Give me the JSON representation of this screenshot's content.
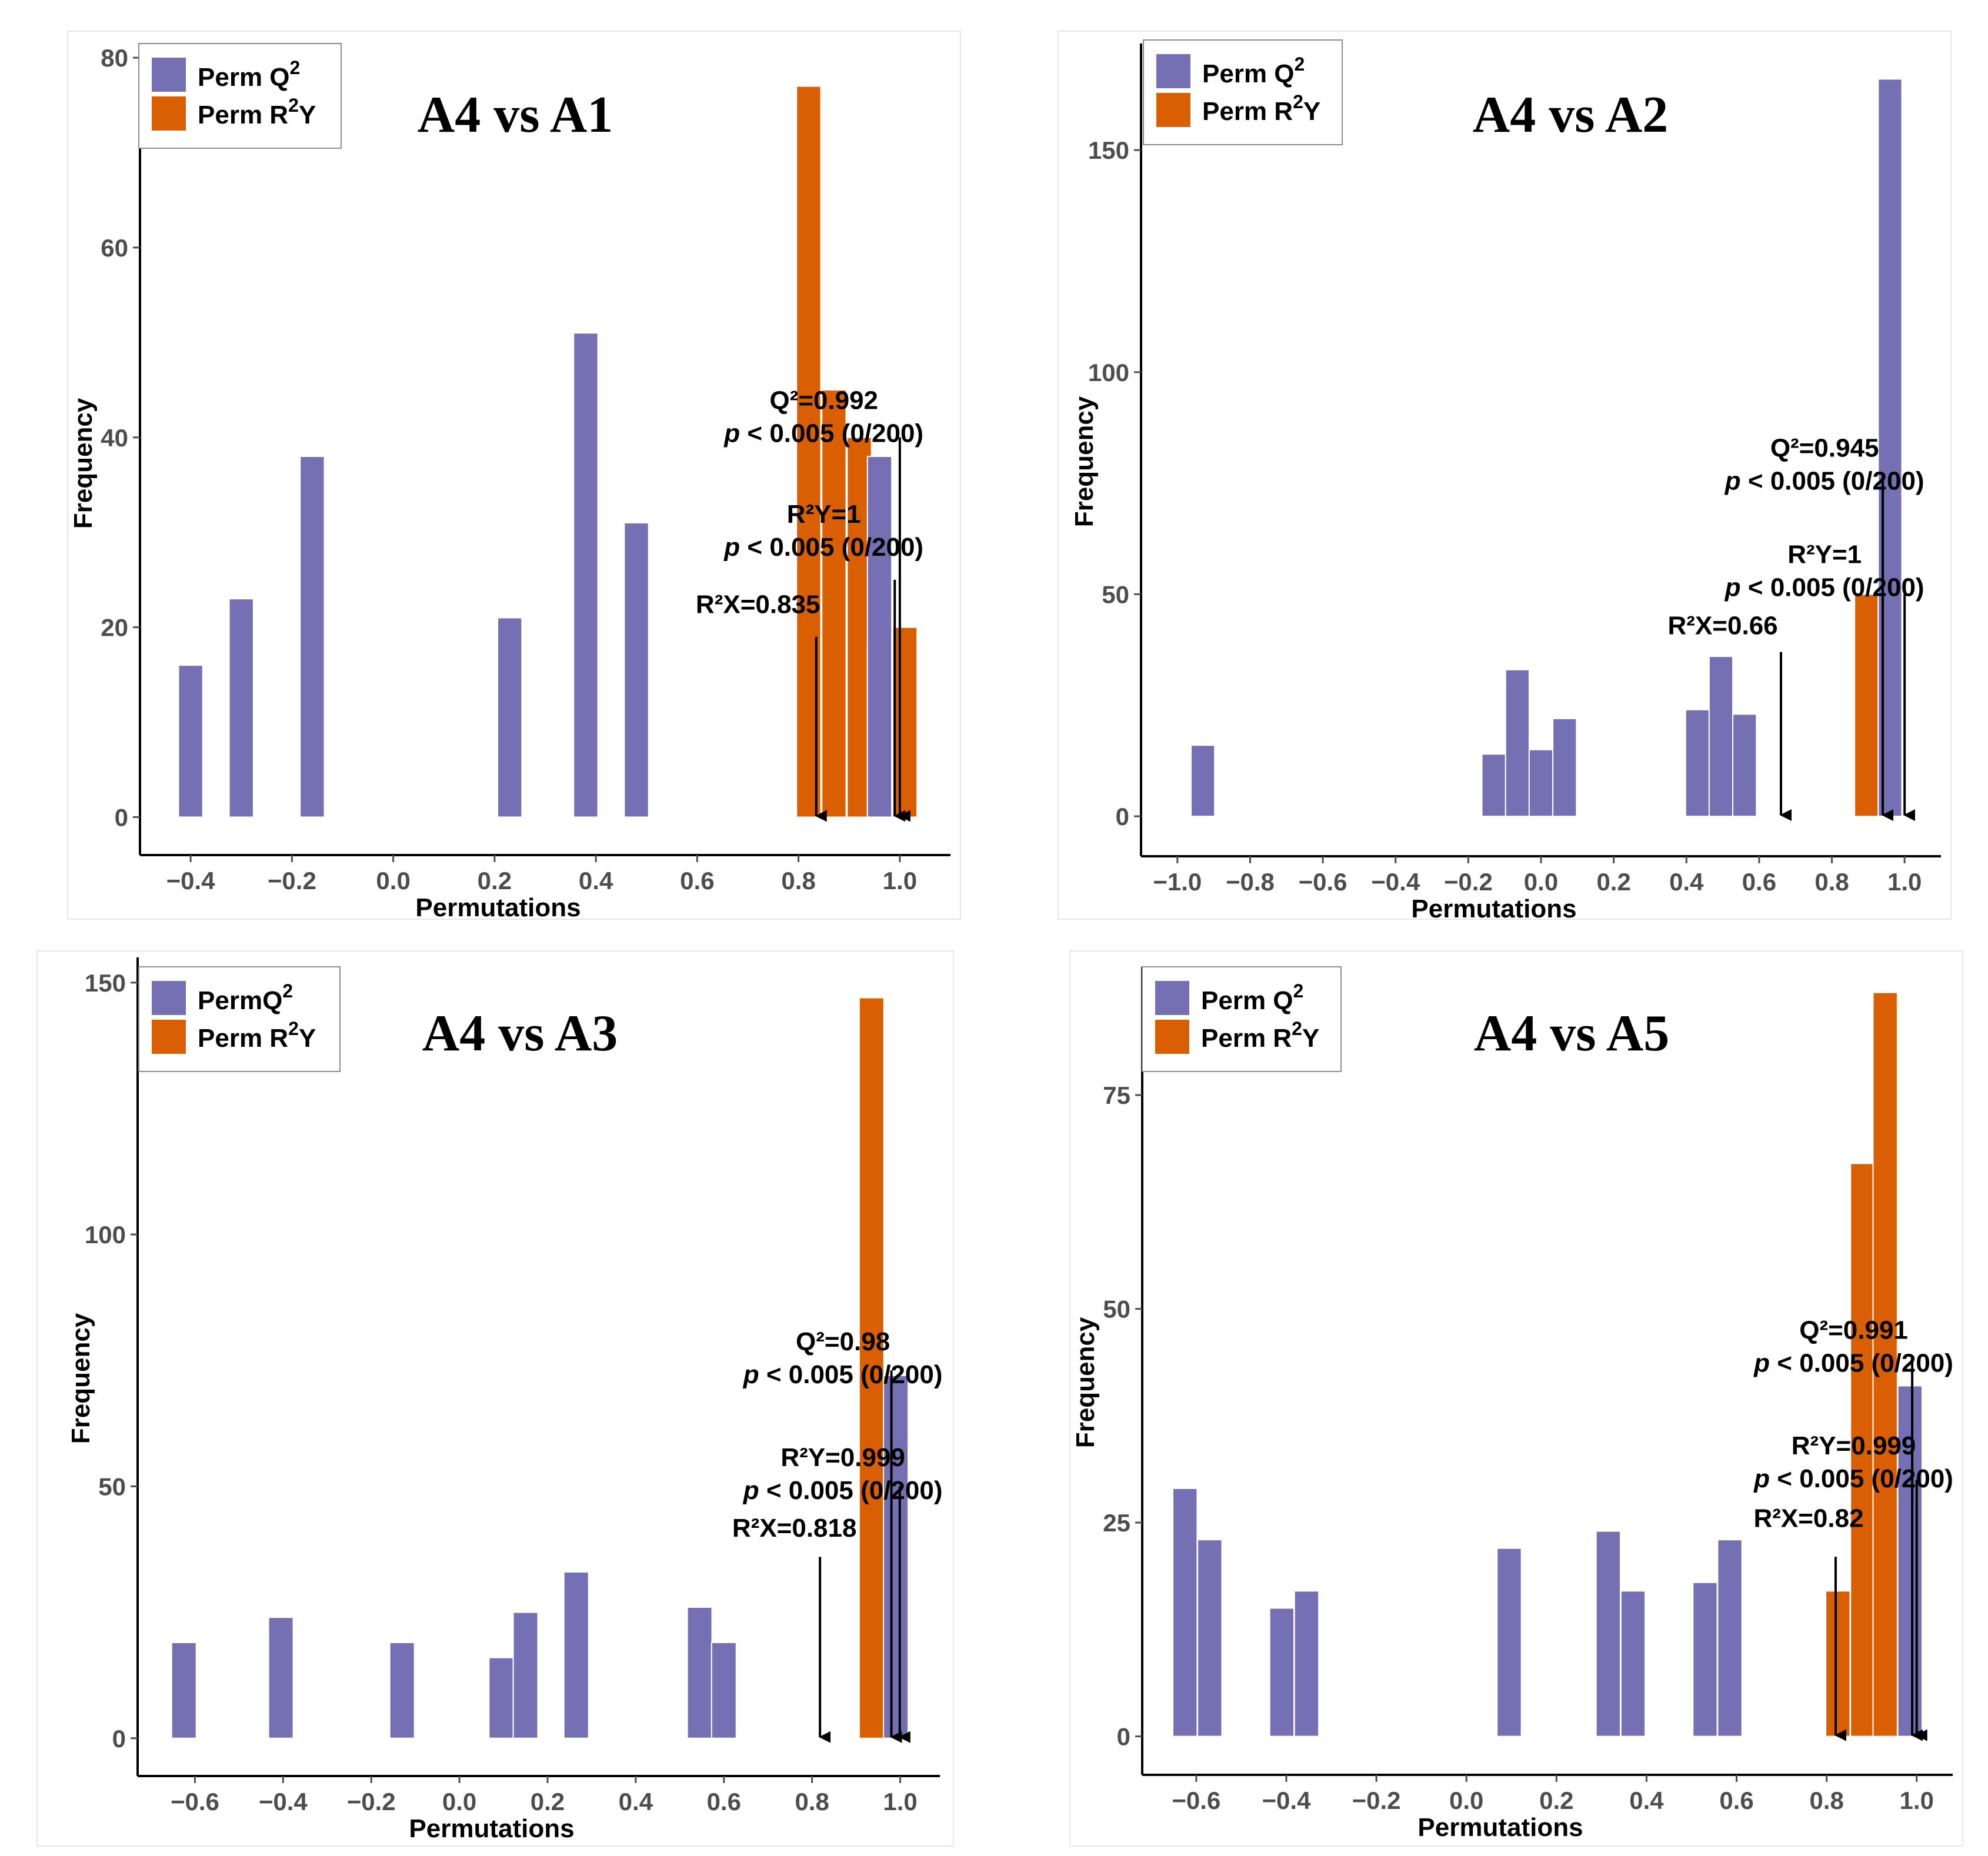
{
  "colors": {
    "q2": "#7570b3",
    "r2y": "#d95f02"
  },
  "legend": {
    "q2_prefix": "Perm Q",
    "q2_prefix_compact": "PermQ",
    "r2y_prefix": "Perm R",
    "r2y_suffix": "Y",
    "sup": "2"
  },
  "chart_data": [
    {
      "type": "histogram",
      "title": "A4 vs A1",
      "xlabel": "Permutations",
      "ylabel": "Frequency",
      "xlim": [
        -0.5,
        1.1
      ],
      "ylim": [
        -4,
        81
      ],
      "xticks": [
        -0.4,
        -0.2,
        0.0,
        0.2,
        0.4,
        0.6,
        0.8,
        1.0
      ],
      "xtick_labels": [
        "−0.4",
        "−0.2",
        "0.0",
        "0.2",
        "0.4",
        "0.6",
        "0.8",
        "1.0"
      ],
      "yticks": [
        0,
        20,
        40,
        60,
        80
      ],
      "ytick_labels": [
        "0",
        "20",
        "40",
        "60",
        "80"
      ],
      "bin_width": 0.048,
      "series": [
        {
          "name": "Perm Q2",
          "color_key": "q2",
          "bins": [
            [
              -0.4,
              16
            ],
            [
              -0.3,
              23
            ],
            [
              -0.16,
              38
            ],
            [
              0.23,
              21
            ],
            [
              0.38,
              51
            ],
            [
              0.48,
              31
            ],
            [
              0.96,
              38
            ]
          ]
        },
        {
          "name": "Perm R2Y",
          "color_key": "r2y",
          "bins": [
            [
              0.82,
              77
            ],
            [
              0.87,
              45
            ],
            [
              0.92,
              40
            ],
            [
              0.96,
              18
            ],
            [
              1.01,
              20
            ]
          ]
        }
      ],
      "annotations": [
        {
          "lines": [
            "Q²=0.992",
            "p < 0.005 (0/200)"
          ],
          "arrow_x": 1.0,
          "arrow_from_y": 40,
          "text_x": 0.85,
          "text_y": 43
        },
        {
          "lines": [
            "R²Y=1",
            "p < 0.005 (0/200)"
          ],
          "arrow_x": 0.99,
          "arrow_from_y": 25,
          "text_x": 0.85,
          "text_y": 31
        },
        {
          "lines": [
            "R²X=0.835"
          ],
          "arrow_x": 0.835,
          "arrow_from_y": 19,
          "text_x": 0.72,
          "text_y": 21.5
        }
      ]
    },
    {
      "type": "histogram",
      "title": "A4 vs A2",
      "xlabel": "Permutations",
      "ylabel": "Frequency",
      "xlim": [
        -1.1,
        1.1
      ],
      "ylim": [
        -9,
        174
      ],
      "xticks": [
        -1.0,
        -0.8,
        -0.6,
        -0.4,
        -0.2,
        0.0,
        0.2,
        0.4,
        0.6,
        0.8,
        1.0
      ],
      "xtick_labels": [
        "−1.0",
        "−0.8",
        "−0.6",
        "−0.4",
        "−0.2",
        "0.0",
        "0.2",
        "0.4",
        "0.6",
        "0.8",
        "1.0"
      ],
      "yticks": [
        0,
        50,
        100,
        150
      ],
      "ytick_labels": [
        "0",
        "50",
        "100",
        "150"
      ],
      "bin_width": 0.065,
      "series": [
        {
          "name": "Perm Q2",
          "color_key": "q2",
          "bins": [
            [
              -0.93,
              16
            ],
            [
              -0.13,
              14
            ],
            [
              -0.065,
              33
            ],
            [
              0.0,
              15
            ],
            [
              0.065,
              22
            ],
            [
              0.43,
              24
            ],
            [
              0.495,
              36
            ],
            [
              0.56,
              23
            ],
            [
              0.96,
              166
            ]
          ]
        },
        {
          "name": "Perm R2Y",
          "color_key": "r2y",
          "bins": [
            [
              0.895,
              50
            ],
            [
              0.96,
              149
            ]
          ]
        }
      ],
      "annotations": [
        {
          "lines": [
            "Q²=0.945",
            "p < 0.005 (0/200)"
          ],
          "arrow_x": 0.94,
          "arrow_from_y": 76,
          "text_x": 0.78,
          "text_y": 81
        },
        {
          "lines": [
            "R²Y=1",
            "p < 0.005 (0/200)"
          ],
          "arrow_x": 1.0,
          "arrow_from_y": 50,
          "text_x": 0.78,
          "text_y": 57
        },
        {
          "lines": [
            "R²X=0.66"
          ],
          "arrow_x": 0.66,
          "arrow_from_y": 37,
          "text_x": 0.5,
          "text_y": 41
        }
      ]
    },
    {
      "type": "histogram",
      "title": "A4 vs A3",
      "xlabel": "Permutations",
      "ylabel": "Frequency",
      "xlim": [
        -0.73,
        1.09
      ],
      "ylim": [
        -7.5,
        155
      ],
      "xticks": [
        -0.6,
        -0.4,
        -0.2,
        0.0,
        0.2,
        0.4,
        0.6,
        0.8,
        1.0
      ],
      "xtick_labels": [
        "−0.6",
        "−0.4",
        "−0.2",
        "0.0",
        "0.2",
        "0.4",
        "0.6",
        "0.8",
        "1.0"
      ],
      "yticks": [
        0,
        50,
        100,
        150
      ],
      "ytick_labels": [
        "0",
        "50",
        "100",
        "150"
      ],
      "bin_width": 0.056,
      "series": [
        {
          "name": "Perm Q2",
          "color_key": "q2",
          "bins": [
            [
              -0.625,
              19
            ],
            [
              -0.405,
              24
            ],
            [
              -0.13,
              19
            ],
            [
              0.095,
              16
            ],
            [
              0.15,
              25
            ],
            [
              0.265,
              33
            ],
            [
              0.545,
              26
            ],
            [
              0.6,
              19
            ],
            [
              0.99,
              72
            ]
          ]
        },
        {
          "name": "Perm R2Y",
          "color_key": "r2y",
          "bins": [
            [
              0.935,
              147
            ],
            [
              0.99,
              50
            ]
          ]
        }
      ],
      "annotations": [
        {
          "lines": [
            "Q²=0.98",
            "p < 0.005 (0/200)"
          ],
          "arrow_x": 0.98,
          "arrow_from_y": 73,
          "text_x": 0.87,
          "text_y": 77
        },
        {
          "lines": [
            "R²Y=0.999",
            "p < 0.005 (0/200)"
          ],
          "arrow_x": 0.999,
          "arrow_from_y": 50,
          "text_x": 0.87,
          "text_y": 54
        },
        {
          "lines": [
            "R²X=0.818"
          ],
          "arrow_x": 0.818,
          "arrow_from_y": 36,
          "text_x": 0.76,
          "text_y": 40
        }
      ]
    },
    {
      "type": "histogram",
      "title": "A4 vs A5",
      "xlabel": "Permutations",
      "ylabel": "Frequency",
      "xlim": [
        -0.72,
        1.08
      ],
      "ylim": [
        -4.5,
        90
      ],
      "xticks": [
        -0.6,
        -0.4,
        -0.2,
        0.0,
        0.2,
        0.4,
        0.6,
        0.8,
        1.0
      ],
      "xtick_labels": [
        "−0.6",
        "−0.4",
        "−0.2",
        "0.0",
        "0.2",
        "0.4",
        "0.6",
        "0.8",
        "1.0"
      ],
      "yticks": [
        0,
        25,
        50,
        75
      ],
      "ytick_labels": [
        "0",
        "25",
        "50",
        "75"
      ],
      "bin_width": 0.054,
      "series": [
        {
          "name": "Perm Q2",
          "color_key": "q2",
          "bins": [
            [
              -0.625,
              29
            ],
            [
              -0.57,
              23
            ],
            [
              -0.41,
              15
            ],
            [
              -0.355,
              17
            ],
            [
              0.095,
              22
            ],
            [
              0.315,
              24
            ],
            [
              0.37,
              17
            ],
            [
              0.53,
              18
            ],
            [
              0.585,
              23
            ],
            [
              0.985,
              41
            ]
          ]
        },
        {
          "name": "Perm R2Y",
          "color_key": "r2y",
          "bins": [
            [
              0.825,
              17
            ],
            [
              0.88,
              67
            ],
            [
              0.93,
              87
            ],
            [
              0.985,
              29
            ]
          ]
        }
      ],
      "annotations": [
        {
          "lines": [
            "Q²=0.991",
            "p < 0.005 (0/200)"
          ],
          "arrow_x": 0.99,
          "arrow_from_y": 44,
          "text_x": 0.86,
          "text_y": 46.5
        },
        {
          "lines": [
            "R²Y=0.999",
            "p < 0.005 (0/200)"
          ],
          "arrow_x": 1.0,
          "arrow_from_y": 30,
          "text_x": 0.86,
          "text_y": 33
        },
        {
          "lines": [
            "R²X=0.82"
          ],
          "arrow_x": 0.82,
          "arrow_from_y": 21,
          "text_x": 0.76,
          "text_y": 24.5
        }
      ]
    }
  ]
}
